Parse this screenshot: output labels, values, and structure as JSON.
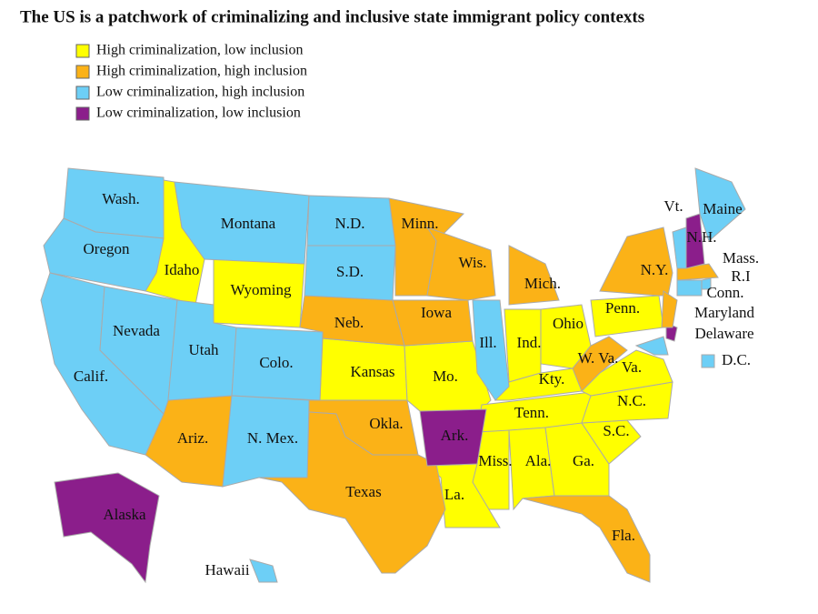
{
  "title": "The US is a patchwork of criminalizing and inclusive state immigrant policy contexts",
  "groups": [
    {
      "label": "High criminalization, low inclusion",
      "color": "#ffff00",
      "states": [
        "Idaho",
        "Wyoming",
        "Kansas",
        "Mo.",
        "Ind.",
        "Ohio",
        "Kty.",
        "Tenn.",
        "Miss.",
        "Ala.",
        "Ga.",
        "S.C.",
        "N.C.",
        "La.",
        "Penn.",
        "Va."
      ]
    },
    {
      "label": "High criminalization, high inclusion",
      "color": "#fbb217",
      "states": [
        "Minn.",
        "Wis.",
        "Mich.",
        "Iowa",
        "Neb.",
        "Okla.",
        "Texas",
        "Ariz.",
        "Fla.",
        "N.Y.",
        "W. Va.",
        "Mass."
      ]
    },
    {
      "label": "Low criminalization, high inclusion",
      "color": "#6dcff6",
      "states": [
        "Wash.",
        "Oregon",
        "Calif.",
        "Nevada",
        "Utah",
        "Colo.",
        "N. Mex.",
        "Montana",
        "N.D.",
        "S.D.",
        "Ill.",
        "Hawaii",
        "Maine",
        "Vt.",
        "R.I",
        "Conn.",
        "Maryland",
        "D.C."
      ]
    },
    {
      "label": "Low criminalization, low inclusion",
      "color": "#8b1e8b",
      "states": [
        "Ark.",
        "Alaska",
        "N.H.",
        "Delaware"
      ]
    }
  ]
}
